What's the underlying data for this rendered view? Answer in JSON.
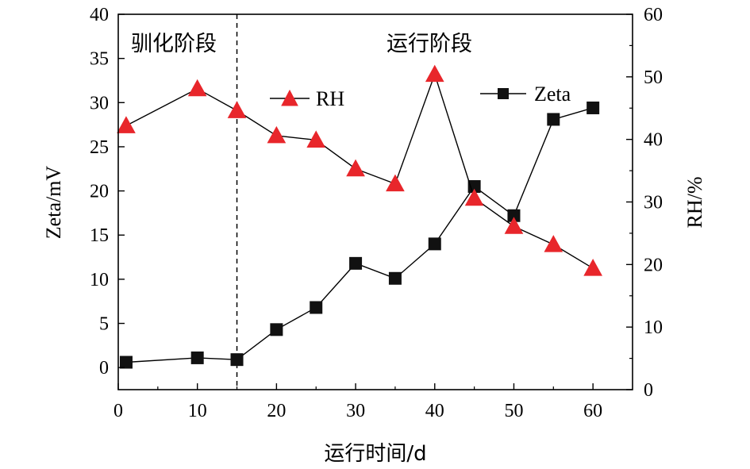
{
  "chart_data": {
    "type": "line",
    "xlabel": "运行时间/d",
    "ylabel_left": "Zeta/mV",
    "ylabel_right": "RH/%",
    "xlim": [
      0,
      65
    ],
    "ylim_left": [
      -2.5,
      40
    ],
    "ylim_right": [
      0,
      60
    ],
    "x_ticks": [
      "0",
      "10",
      "20",
      "30",
      "40",
      "50",
      "60"
    ],
    "y_left_ticks": [
      "0",
      "5",
      "10",
      "15",
      "20",
      "25",
      "30",
      "35",
      "40"
    ],
    "y_right_ticks": [
      "0",
      "10",
      "20",
      "30",
      "40",
      "50",
      "60"
    ],
    "phase_divider_x": 15,
    "phase_labels": [
      "驯化阶段",
      "运行阶段"
    ],
    "series": [
      {
        "name": "Zeta",
        "axis": "left",
        "marker": "square",
        "color": "#111111",
        "x": [
          1,
          10,
          15,
          20,
          25,
          30,
          35,
          40,
          45,
          50,
          55,
          60
        ],
        "values": [
          0.6,
          1.1,
          0.9,
          4.3,
          6.8,
          11.8,
          10.1,
          14.0,
          20.5,
          17.2,
          28.1,
          29.4
        ]
      },
      {
        "name": "RH",
        "axis": "right",
        "marker": "triangle",
        "color": "#e8262b",
        "x": [
          1,
          10,
          15,
          20,
          25,
          30,
          35,
          40,
          45,
          50,
          55,
          60
        ],
        "values": [
          42.2,
          48.1,
          44.6,
          40.6,
          39.9,
          35.3,
          32.9,
          50.4,
          30.6,
          26.1,
          23.2,
          19.4
        ]
      }
    ]
  }
}
